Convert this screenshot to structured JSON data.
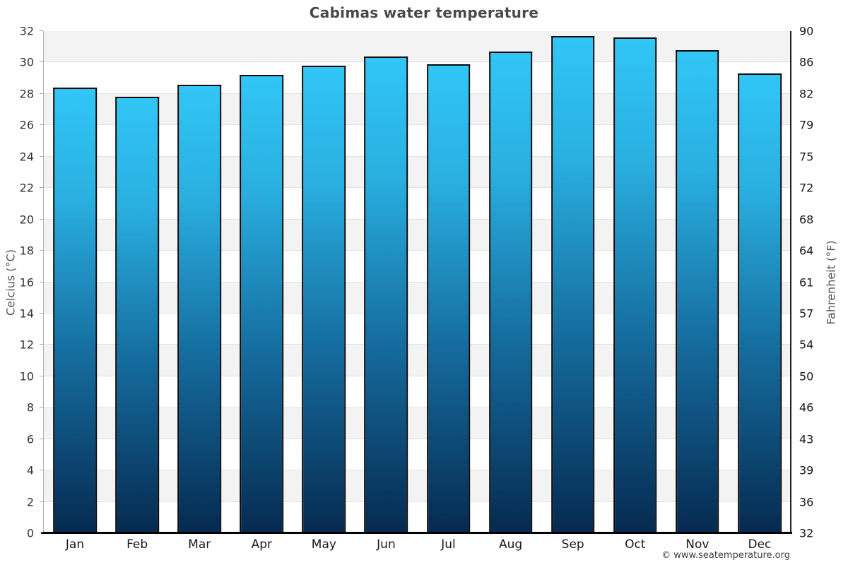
{
  "page": {
    "copyright": "© www.seatemperature.org"
  },
  "chart_data": {
    "type": "bar",
    "title": "Cabimas water temperature",
    "xlabel": "",
    "ylabel_left": "Celcius (°C)",
    "ylabel_right": "Fahrenheit (°F)",
    "ylim": [
      0,
      32
    ],
    "grid": true,
    "legend": "none",
    "categories": [
      "Jan",
      "Feb",
      "Mar",
      "Apr",
      "May",
      "Jun",
      "Jul",
      "Aug",
      "Sep",
      "Oct",
      "Nov",
      "Dec"
    ],
    "series": [
      {
        "name": "Water temperature (°C)",
        "values": [
          28.4,
          27.8,
          28.6,
          29.2,
          29.8,
          30.4,
          29.9,
          30.7,
          31.7,
          31.6,
          30.8,
          29.3
        ]
      }
    ],
    "celsius_ticks": [
      32,
      30,
      28,
      26,
      24,
      22,
      20,
      18,
      16,
      14,
      12,
      10,
      8,
      6,
      4,
      2,
      0
    ],
    "fahrenheit_ticks": [
      90,
      86,
      82,
      79,
      75,
      72,
      68,
      64,
      61,
      57,
      54,
      50,
      46,
      43,
      39,
      36,
      32
    ],
    "colors": {
      "bar_top": "#31c6f6",
      "bar_bottom": "#052a50",
      "bar_border": "#0a0a0a",
      "band_gray": "#f3f3f3",
      "gridline": "#e2e2e2",
      "axis_bottom": "#000000",
      "axis_left": "#b0b0b0",
      "axis_right": "#222222",
      "title_text": "#484848",
      "tick_text": "#333333"
    }
  }
}
